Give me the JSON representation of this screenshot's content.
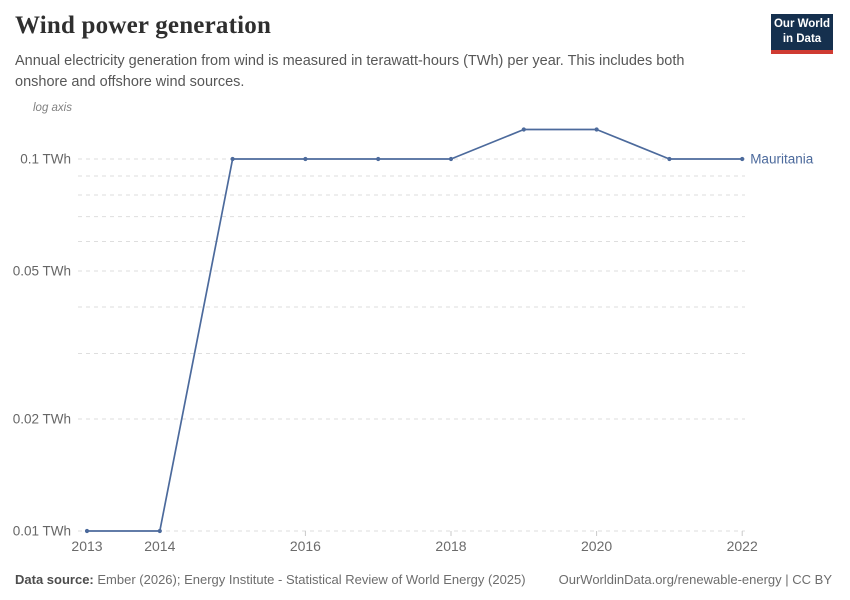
{
  "header": {
    "title": "Wind power generation",
    "subtitle": "Annual electricity generation from wind is measured in terawatt-hours (TWh) per year. This includes both onshore and offshore wind sources.",
    "logo": {
      "line1": "Our World",
      "line2": "in Data"
    }
  },
  "chart_data": {
    "type": "line",
    "title": "Wind power generation",
    "unit": "TWh",
    "y_scale": "log",
    "axis_note": "log axis",
    "grid": "horizontal dashed minor gridlines at each 0.01 step",
    "legend_position": "end-of-line label",
    "x": [
      2013,
      2014,
      2015,
      2016,
      2017,
      2018,
      2019,
      2020,
      2021,
      2022
    ],
    "series": [
      {
        "name": "Mauritania",
        "color": "#4C6A9C",
        "values": [
          0.01,
          0.01,
          0.1,
          0.1,
          0.1,
          0.1,
          0.12,
          0.12,
          0.1,
          0.1
        ]
      }
    ],
    "ylim": [
      0.01,
      0.135
    ],
    "yticks": [
      {
        "value": 0.1,
        "label": "0.1 TWh"
      },
      {
        "value": 0.05,
        "label": "0.05 TWh"
      },
      {
        "value": 0.02,
        "label": "0.02 TWh"
      },
      {
        "value": 0.01,
        "label": "0.01 TWh"
      }
    ],
    "xticks_labeled": [
      2013,
      2014,
      2016,
      2018,
      2020,
      2022
    ],
    "xticks_marked": [
      2016,
      2018,
      2020,
      2022
    ]
  },
  "footer": {
    "source_label": "Data source:",
    "source_text": "Ember (2026); Energy Institute - Statistical Review of World Energy (2025)",
    "credit": "OurWorldinData.org/renewable-energy | CC BY"
  },
  "colors": {
    "line": "#4C6A9C",
    "grid": "#dedede",
    "tick": "#c9c9c9",
    "axis_text": "#6b6b6b",
    "ytick_text": "#666666",
    "logo_bg": "#15304e",
    "logo_red": "#cf3b32"
  }
}
